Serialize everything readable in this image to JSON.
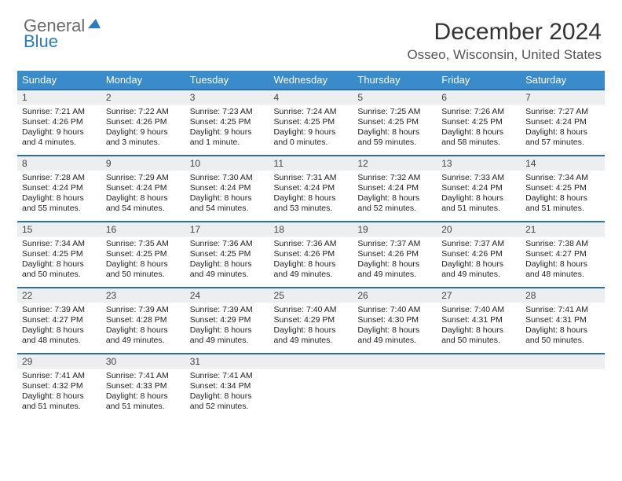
{
  "brand": {
    "word1": "General",
    "word2": "Blue"
  },
  "title": "December 2024",
  "location": "Osseo, Wisconsin, United States",
  "colors": {
    "header_bg": "#3a8bc9",
    "header_text": "#ffffff",
    "day_border": "#2b6fa3",
    "daynum_bg": "#eceeef",
    "logo_gray": "#6b6b6b",
    "logo_blue": "#2b7bbd"
  },
  "weekday_headers": [
    "Sunday",
    "Monday",
    "Tuesday",
    "Wednesday",
    "Thursday",
    "Friday",
    "Saturday"
  ],
  "weeks": [
    [
      {
        "n": "1",
        "sr": "Sunrise: 7:21 AM",
        "ss": "Sunset: 4:26 PM",
        "dl": "Daylight: 9 hours and 4 minutes."
      },
      {
        "n": "2",
        "sr": "Sunrise: 7:22 AM",
        "ss": "Sunset: 4:26 PM",
        "dl": "Daylight: 9 hours and 3 minutes."
      },
      {
        "n": "3",
        "sr": "Sunrise: 7:23 AM",
        "ss": "Sunset: 4:25 PM",
        "dl": "Daylight: 9 hours and 1 minute."
      },
      {
        "n": "4",
        "sr": "Sunrise: 7:24 AM",
        "ss": "Sunset: 4:25 PM",
        "dl": "Daylight: 9 hours and 0 minutes."
      },
      {
        "n": "5",
        "sr": "Sunrise: 7:25 AM",
        "ss": "Sunset: 4:25 PM",
        "dl": "Daylight: 8 hours and 59 minutes."
      },
      {
        "n": "6",
        "sr": "Sunrise: 7:26 AM",
        "ss": "Sunset: 4:25 PM",
        "dl": "Daylight: 8 hours and 58 minutes."
      },
      {
        "n": "7",
        "sr": "Sunrise: 7:27 AM",
        "ss": "Sunset: 4:24 PM",
        "dl": "Daylight: 8 hours and 57 minutes."
      }
    ],
    [
      {
        "n": "8",
        "sr": "Sunrise: 7:28 AM",
        "ss": "Sunset: 4:24 PM",
        "dl": "Daylight: 8 hours and 55 minutes."
      },
      {
        "n": "9",
        "sr": "Sunrise: 7:29 AM",
        "ss": "Sunset: 4:24 PM",
        "dl": "Daylight: 8 hours and 54 minutes."
      },
      {
        "n": "10",
        "sr": "Sunrise: 7:30 AM",
        "ss": "Sunset: 4:24 PM",
        "dl": "Daylight: 8 hours and 54 minutes."
      },
      {
        "n": "11",
        "sr": "Sunrise: 7:31 AM",
        "ss": "Sunset: 4:24 PM",
        "dl": "Daylight: 8 hours and 53 minutes."
      },
      {
        "n": "12",
        "sr": "Sunrise: 7:32 AM",
        "ss": "Sunset: 4:24 PM",
        "dl": "Daylight: 8 hours and 52 minutes."
      },
      {
        "n": "13",
        "sr": "Sunrise: 7:33 AM",
        "ss": "Sunset: 4:24 PM",
        "dl": "Daylight: 8 hours and 51 minutes."
      },
      {
        "n": "14",
        "sr": "Sunrise: 7:34 AM",
        "ss": "Sunset: 4:25 PM",
        "dl": "Daylight: 8 hours and 51 minutes."
      }
    ],
    [
      {
        "n": "15",
        "sr": "Sunrise: 7:34 AM",
        "ss": "Sunset: 4:25 PM",
        "dl": "Daylight: 8 hours and 50 minutes."
      },
      {
        "n": "16",
        "sr": "Sunrise: 7:35 AM",
        "ss": "Sunset: 4:25 PM",
        "dl": "Daylight: 8 hours and 50 minutes."
      },
      {
        "n": "17",
        "sr": "Sunrise: 7:36 AM",
        "ss": "Sunset: 4:25 PM",
        "dl": "Daylight: 8 hours and 49 minutes."
      },
      {
        "n": "18",
        "sr": "Sunrise: 7:36 AM",
        "ss": "Sunset: 4:26 PM",
        "dl": "Daylight: 8 hours and 49 minutes."
      },
      {
        "n": "19",
        "sr": "Sunrise: 7:37 AM",
        "ss": "Sunset: 4:26 PM",
        "dl": "Daylight: 8 hours and 49 minutes."
      },
      {
        "n": "20",
        "sr": "Sunrise: 7:37 AM",
        "ss": "Sunset: 4:26 PM",
        "dl": "Daylight: 8 hours and 49 minutes."
      },
      {
        "n": "21",
        "sr": "Sunrise: 7:38 AM",
        "ss": "Sunset: 4:27 PM",
        "dl": "Daylight: 8 hours and 48 minutes."
      }
    ],
    [
      {
        "n": "22",
        "sr": "Sunrise: 7:39 AM",
        "ss": "Sunset: 4:27 PM",
        "dl": "Daylight: 8 hours and 48 minutes."
      },
      {
        "n": "23",
        "sr": "Sunrise: 7:39 AM",
        "ss": "Sunset: 4:28 PM",
        "dl": "Daylight: 8 hours and 49 minutes."
      },
      {
        "n": "24",
        "sr": "Sunrise: 7:39 AM",
        "ss": "Sunset: 4:29 PM",
        "dl": "Daylight: 8 hours and 49 minutes."
      },
      {
        "n": "25",
        "sr": "Sunrise: 7:40 AM",
        "ss": "Sunset: 4:29 PM",
        "dl": "Daylight: 8 hours and 49 minutes."
      },
      {
        "n": "26",
        "sr": "Sunrise: 7:40 AM",
        "ss": "Sunset: 4:30 PM",
        "dl": "Daylight: 8 hours and 49 minutes."
      },
      {
        "n": "27",
        "sr": "Sunrise: 7:40 AM",
        "ss": "Sunset: 4:31 PM",
        "dl": "Daylight: 8 hours and 50 minutes."
      },
      {
        "n": "28",
        "sr": "Sunrise: 7:41 AM",
        "ss": "Sunset: 4:31 PM",
        "dl": "Daylight: 8 hours and 50 minutes."
      }
    ],
    [
      {
        "n": "29",
        "sr": "Sunrise: 7:41 AM",
        "ss": "Sunset: 4:32 PM",
        "dl": "Daylight: 8 hours and 51 minutes."
      },
      {
        "n": "30",
        "sr": "Sunrise: 7:41 AM",
        "ss": "Sunset: 4:33 PM",
        "dl": "Daylight: 8 hours and 51 minutes."
      },
      {
        "n": "31",
        "sr": "Sunrise: 7:41 AM",
        "ss": "Sunset: 4:34 PM",
        "dl": "Daylight: 8 hours and 52 minutes."
      },
      null,
      null,
      null,
      null
    ]
  ]
}
